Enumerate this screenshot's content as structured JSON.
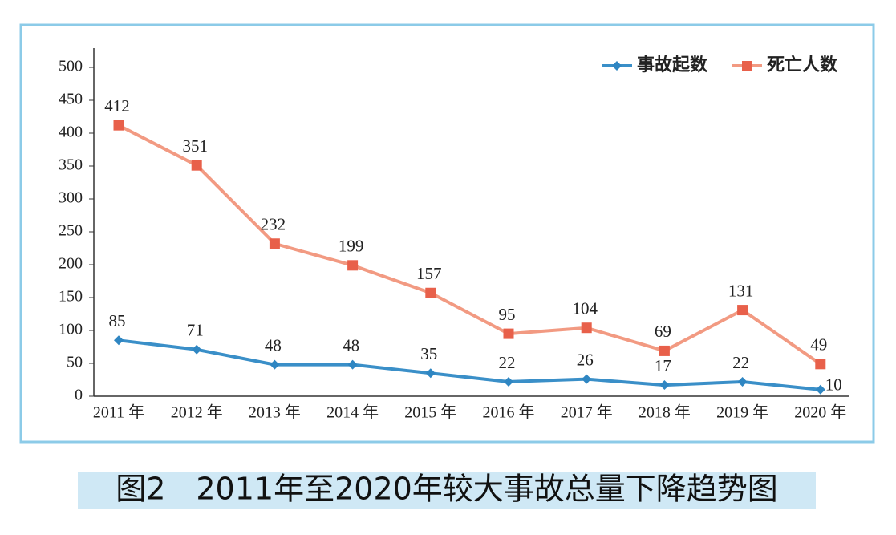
{
  "chart_data": {
    "type": "line",
    "title": "图2　2011年至2020年较大事故总量下降趋势图",
    "categories": [
      "2011 年",
      "2012 年",
      "2013 年",
      "2014 年",
      "2015 年",
      "2016 年",
      "2017 年",
      "2018 年",
      "2019 年",
      "2020 年"
    ],
    "series": [
      {
        "name": "事故起数",
        "color": "#3a8fc8",
        "marker_color": "#2f86c2",
        "marker": "diamond",
        "values": [
          85,
          71,
          48,
          48,
          35,
          22,
          26,
          17,
          22,
          10
        ]
      },
      {
        "name": "死亡人数",
        "color": "#f29a82",
        "marker_color": "#e8604a",
        "marker": "square",
        "values": [
          412,
          351,
          232,
          199,
          157,
          95,
          104,
          69,
          131,
          49
        ]
      }
    ],
    "ylim": [
      0,
      500
    ],
    "yticks": [
      0,
      50,
      100,
      150,
      200,
      250,
      300,
      350,
      400,
      450,
      500
    ],
    "grid": false,
    "legend": "top-right"
  }
}
